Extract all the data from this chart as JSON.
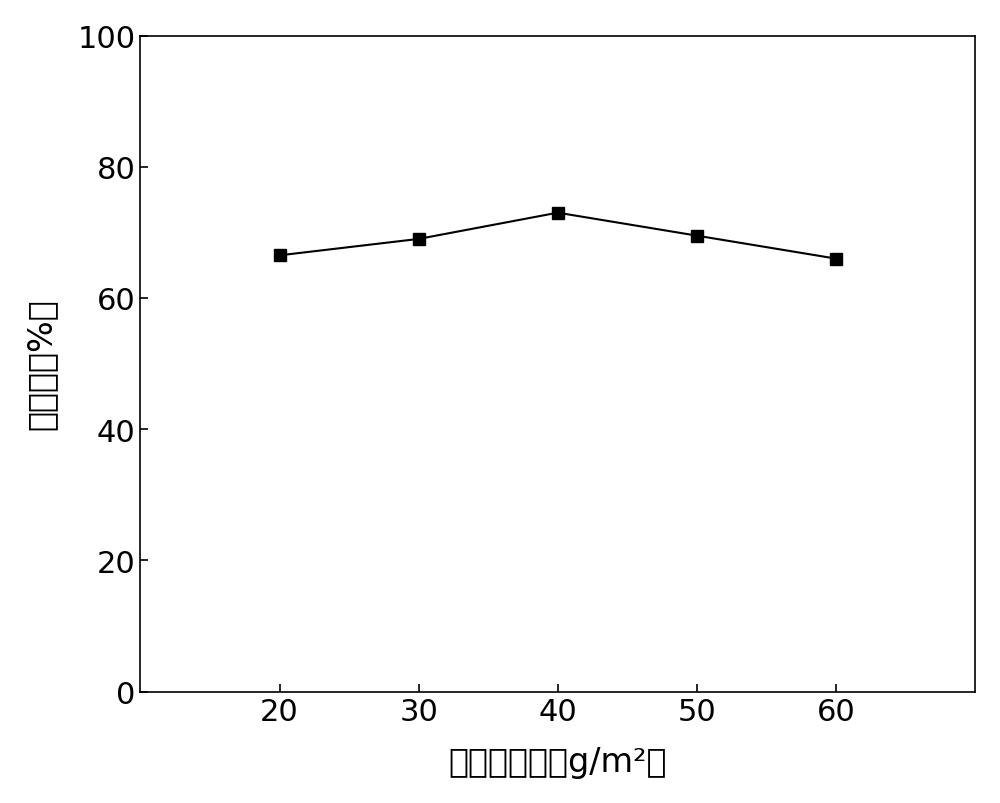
{
  "x": [
    20,
    30,
    40,
    50,
    60
  ],
  "y": [
    66.5,
    69.0,
    73.0,
    69.5,
    66.0
  ],
  "xlabel": "无纺布克重（g/m²）",
  "ylabel": "萍取率（%）",
  "xlim": [
    10,
    70
  ],
  "ylim": [
    0,
    100
  ],
  "xticks": [
    20,
    30,
    40,
    50,
    60
  ],
  "yticks": [
    0,
    20,
    40,
    60,
    80,
    100
  ],
  "line_color": "#000000",
  "marker": "s",
  "marker_color": "#000000",
  "marker_size": 9,
  "linewidth": 1.5,
  "background_color": "#ffffff",
  "xlabel_fontsize": 24,
  "ylabel_fontsize": 24,
  "tick_fontsize": 22
}
